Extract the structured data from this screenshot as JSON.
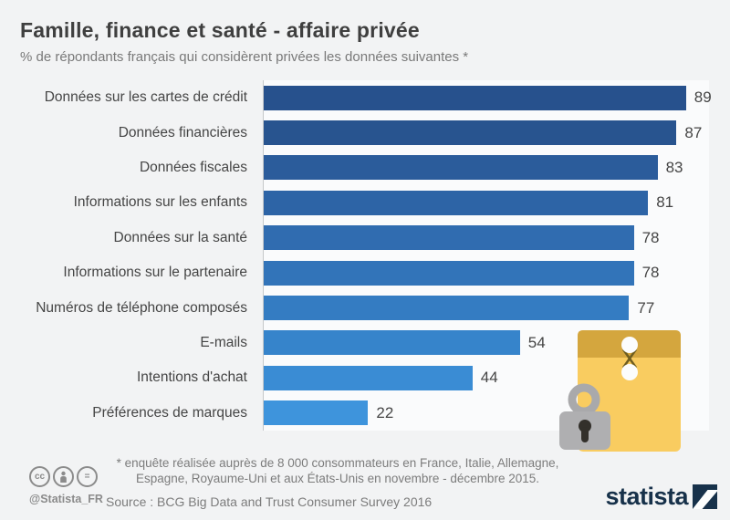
{
  "header": {
    "title": "Famille, finance et santé - affaire privée",
    "subtitle": "% de répondants français qui considèrent privées les données suivantes *"
  },
  "chart_data": {
    "type": "bar",
    "orientation": "horizontal",
    "title": "Famille, finance et santé - affaire privée",
    "subtitle": "% de répondants français qui considèrent privées les données suivantes *",
    "unit": "% of respondents",
    "xlim": [
      0,
      94
    ],
    "grid": false,
    "categories": [
      "Données sur les cartes de crédit",
      "Données financières",
      "Données fiscales",
      "Informations sur les enfants",
      "Données sur la santé",
      "Informations sur le partenaire",
      "Numéros de téléphone composés",
      "E-mails",
      "Intentions d'achat",
      "Préférences de marques"
    ],
    "values": [
      89,
      87,
      83,
      81,
      78,
      78,
      77,
      54,
      44,
      22
    ],
    "bar_colors": [
      "#27518D",
      "#28548F",
      "#2B5C9B",
      "#2D64A6",
      "#306CB0",
      "#3274B9",
      "#347CC2",
      "#3684CB",
      "#3A8CD4",
      "#3E94DC"
    ]
  },
  "illustration": {
    "name": "locked-envelope",
    "envelope_body_color": "#F9CC60",
    "envelope_flap_color": "#D4A63E",
    "string_color": "#6E5D20",
    "lock_color": "#ACACAE",
    "keyhole_color": "#33302B"
  },
  "footer": {
    "license_icons": [
      "cc-icon",
      "attribution-icon",
      "no-derivatives-icon"
    ],
    "cc_label": "cc",
    "nd_label": "=",
    "handle": "@Statista_FR",
    "footnote_line1": "* enquête réalisée auprès de 8 000 consommateurs en France, Italie, Allemagne,",
    "footnote_line2": "Espagne, Royaume-Uni et aux États-Unis en novembre - décembre 2015.",
    "source": "Source : BCG Big Data and Trust Consumer Survey 2016",
    "logo_text": "statista",
    "logo_color": "#17314A"
  }
}
